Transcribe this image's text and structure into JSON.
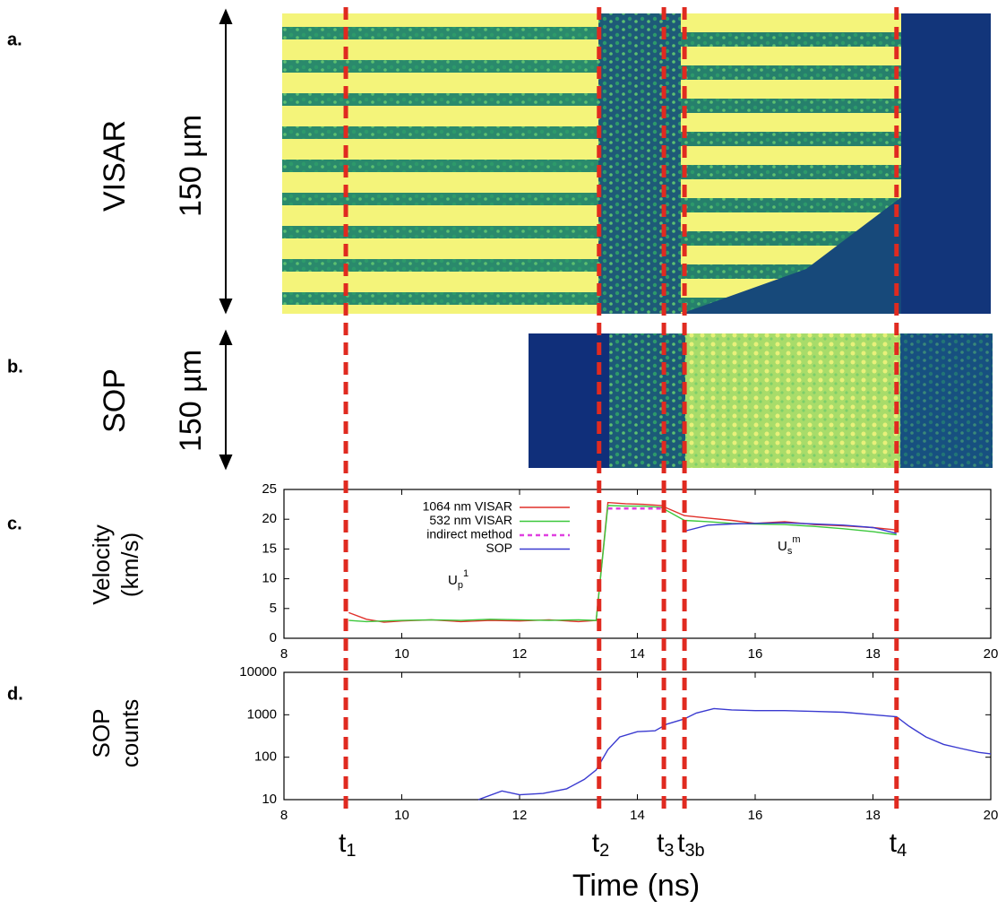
{
  "panels": [
    {
      "label": "a.",
      "ylabel": "VISAR",
      "scale": "150 µm"
    },
    {
      "label": "b.",
      "ylabel": "SOP",
      "scale": "150 µm"
    }
  ],
  "chart_data": [
    {
      "type": "line",
      "label": "c.",
      "ylabel": [
        "Velocity",
        "(km/s)"
      ],
      "x": [
        9.1,
        9.4,
        9.7,
        10.0,
        10.5,
        11.0,
        11.5,
        12.0,
        12.5,
        13.0,
        13.3,
        13.5,
        13.8,
        14.1,
        14.4,
        14.8,
        15.2,
        15.6,
        16.0,
        16.5,
        17.0,
        17.5,
        18.0,
        18.4
      ],
      "series": [
        {
          "name": "1064 nm VISAR",
          "color": "#e0302a",
          "style": "solid",
          "values": [
            4.3,
            3.2,
            2.7,
            2.9,
            3.1,
            2.8,
            3.0,
            2.9,
            3.1,
            2.8,
            3.0,
            22.8,
            22.6,
            22.5,
            22.3,
            20.6,
            20.2,
            19.8,
            19.3,
            19.6,
            19.1,
            18.9,
            18.6,
            18.2
          ]
        },
        {
          "name": "532 nm VISAR",
          "color": "#3cc83c",
          "style": "solid",
          "values": [
            3.0,
            2.8,
            2.9,
            3.0,
            3.1,
            3.0,
            3.2,
            3.1,
            3.0,
            3.1,
            3.0,
            22.3,
            22.2,
            22.2,
            22.0,
            19.8,
            19.6,
            19.3,
            19.2,
            19.1,
            18.8,
            18.4,
            17.9,
            17.4
          ]
        },
        {
          "name": "indirect method",
          "color": "#e040e0",
          "style": "dashed",
          "values": [
            null,
            null,
            null,
            null,
            null,
            null,
            null,
            null,
            null,
            null,
            null,
            21.8,
            21.8,
            21.8,
            21.8,
            null,
            null,
            null,
            null,
            null,
            null,
            null,
            null,
            null
          ]
        },
        {
          "name": "SOP",
          "color": "#3a3ad0",
          "style": "solid",
          "values": [
            null,
            null,
            null,
            null,
            null,
            null,
            null,
            null,
            null,
            null,
            null,
            null,
            null,
            null,
            null,
            18.0,
            19.0,
            19.2,
            19.3,
            19.4,
            19.2,
            19.0,
            18.6,
            17.6
          ]
        }
      ],
      "annotations": [
        {
          "text": "U",
          "sub": "p",
          "sup": "1"
        },
        {
          "text": "U",
          "sub": "s",
          "sup": "m"
        }
      ],
      "xlim": [
        8,
        20
      ],
      "xticks": [
        8,
        10,
        12,
        14,
        16,
        18,
        20
      ],
      "ylim": [
        0,
        25
      ],
      "yticks": [
        0,
        5,
        10,
        15,
        20,
        25
      ],
      "legend": "upper left",
      "grid": false
    },
    {
      "type": "line",
      "label": "d.",
      "ylabel": [
        "SOP",
        "counts"
      ],
      "x": [
        11.3,
        11.7,
        12.0,
        12.4,
        12.8,
        13.1,
        13.3,
        13.5,
        13.7,
        14.0,
        14.3,
        14.5,
        14.8,
        15.0,
        15.3,
        15.6,
        16.0,
        16.5,
        17.0,
        17.5,
        18.0,
        18.4,
        18.6,
        18.9,
        19.2,
        19.5,
        19.8,
        20.0
      ],
      "series": [
        {
          "color": "#3a3ad0",
          "style": "solid",
          "values": [
            10,
            16,
            13,
            14,
            18,
            30,
            50,
            150,
            300,
            400,
            420,
            600,
            800,
            1100,
            1400,
            1300,
            1250,
            1250,
            1200,
            1150,
            1000,
            900,
            550,
            300,
            200,
            160,
            130,
            120
          ]
        }
      ],
      "xlim": [
        8,
        20
      ],
      "xticks": [
        8,
        10,
        12,
        14,
        16,
        18,
        20
      ],
      "ylim": [
        10,
        10000
      ],
      "yticks": [
        10,
        100,
        1000,
        10000
      ],
      "log_y": true,
      "grid": false
    }
  ],
  "markers": [
    {
      "label": "t",
      "sub": "1",
      "x": 9.05
    },
    {
      "label": "t",
      "sub": "2",
      "x": 13.35
    },
    {
      "label": "t",
      "sub": "3",
      "x": 14.45
    },
    {
      "label": "t",
      "sub": "3b",
      "x": 14.8
    },
    {
      "label": "t",
      "sub": "4",
      "x": 18.4
    }
  ],
  "xlabel": "Time (ns)"
}
